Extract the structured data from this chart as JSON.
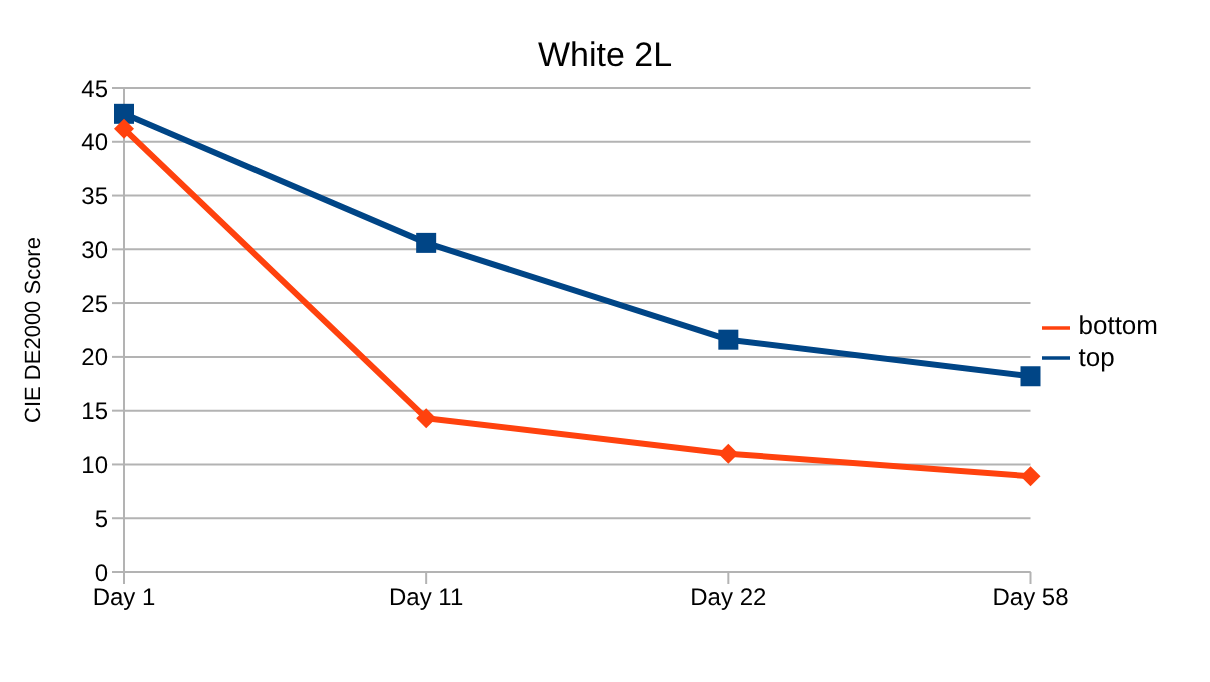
{
  "chart_data": {
    "type": "line",
    "title": "White 2L",
    "ylabel": "CIE DE2000 Score",
    "categories": [
      "Day 1",
      "Day 11",
      "Day 22",
      "Day 58"
    ],
    "series": [
      {
        "name": "top",
        "color": "#004586",
        "marker": "square",
        "values": [
          42.6,
          30.6,
          21.6,
          18.2
        ]
      },
      {
        "name": "bottom",
        "color": "#ff420e",
        "marker": "diamond",
        "values": [
          41.2,
          14.3,
          11.0,
          8.9
        ]
      }
    ],
    "ylim": [
      0,
      45
    ],
    "yticks": [
      0,
      5,
      10,
      15,
      20,
      25,
      30,
      35,
      40,
      45
    ],
    "grid": "y",
    "legend": "right",
    "line_style": "solid"
  }
}
